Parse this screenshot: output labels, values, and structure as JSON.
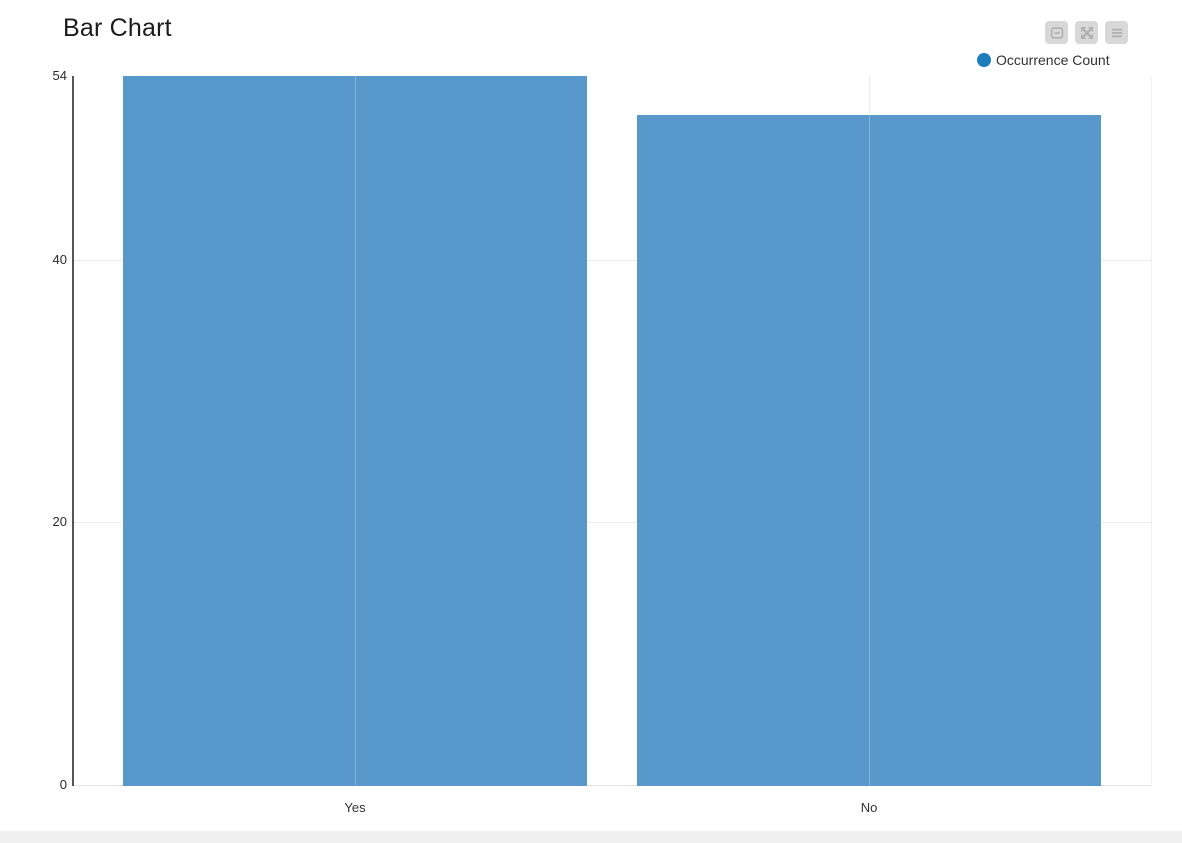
{
  "title": "Bar Chart",
  "toolbar": {
    "buttons": [
      {
        "name": "zoom-out-button",
        "icon": "square-minus-icon"
      },
      {
        "name": "expand-button",
        "icon": "expand-arrows-icon"
      },
      {
        "name": "menu-button",
        "icon": "hamburger-icon"
      }
    ]
  },
  "legend": {
    "label": "Occurrence Count",
    "marker_color": "#1f7dbd",
    "position": "top-right"
  },
  "chart_data": {
    "type": "bar",
    "title": "Bar Chart",
    "categories": [
      "Yes",
      "No"
    ],
    "values": [
      54,
      51
    ],
    "series_name": "Occurrence Count",
    "xlabel": "",
    "ylabel": "",
    "ylim": [
      0,
      54
    ],
    "yticks": [
      0,
      20,
      40,
      54
    ],
    "bar_color": "#5898cb",
    "grid": true,
    "legend_position": "top-right"
  }
}
